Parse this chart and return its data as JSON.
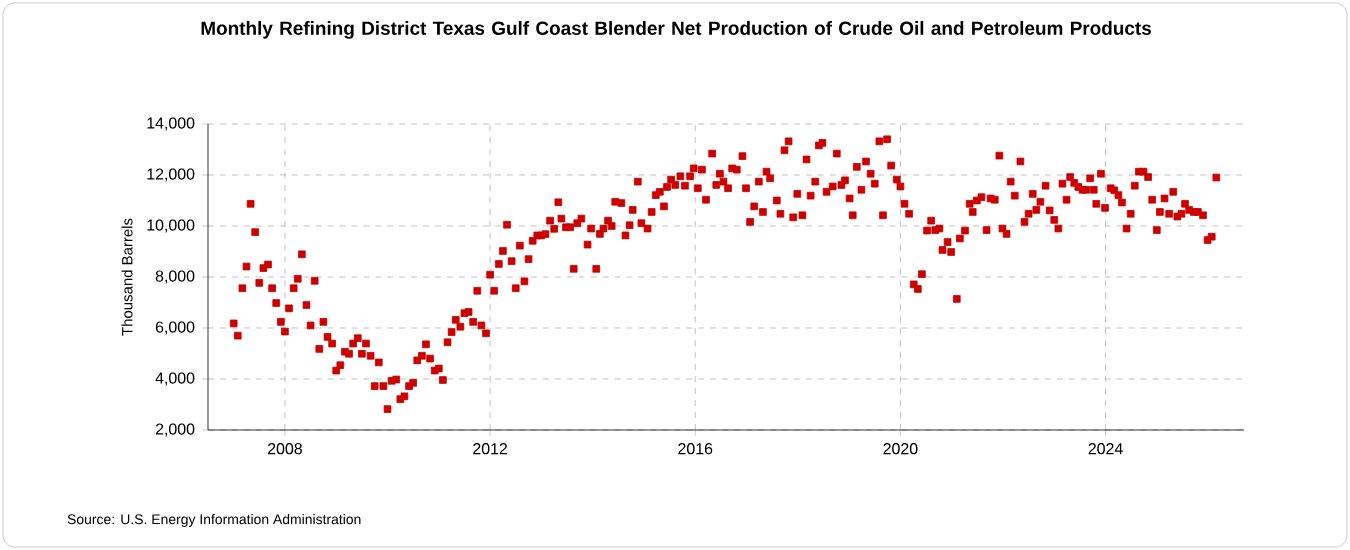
{
  "chart_data": {
    "type": "scatter",
    "title": "Monthly Refining District Texas Gulf Coast Blender Net Production of Crude Oil and Petroleum Products",
    "ylabel": "Thousand Barrels",
    "annotations": [
      "Source: U.S. Energy Information Administration"
    ],
    "xlim": [
      2006.5,
      2026.7
    ],
    "xticks": [
      2008,
      2012,
      2016,
      2020,
      2024
    ],
    "ylim": [
      2000,
      14000
    ],
    "yticks": [
      {
        "value": 2000,
        "label": "2,000"
      },
      {
        "value": 4000,
        "label": "4,000"
      },
      {
        "value": 6000,
        "label": "6,000"
      },
      {
        "value": 8000,
        "label": "8,000"
      },
      {
        "value": 10000,
        "label": "10,000"
      },
      {
        "value": 12000,
        "label": "12,000"
      },
      {
        "value": 14000,
        "label": "14,000"
      }
    ],
    "grid": true,
    "marker": "square",
    "series": [
      {
        "color": "#cc0000",
        "x": [
          2007.0,
          2007.08,
          2007.17,
          2007.25,
          2007.33,
          2007.42,
          2007.5,
          2007.58,
          2007.67,
          2007.75,
          2007.83,
          2007.92,
          2008.0,
          2008.08,
          2008.17,
          2008.25,
          2008.33,
          2008.42,
          2008.5,
          2008.58,
          2008.67,
          2008.75,
          2008.83,
          2008.92,
          2009.0,
          2009.08,
          2009.17,
          2009.25,
          2009.33,
          2009.42,
          2009.5,
          2009.58,
          2009.67,
          2009.75,
          2009.83,
          2009.92,
          2010.0,
          2010.08,
          2010.17,
          2010.25,
          2010.33,
          2010.42,
          2010.5,
          2010.58,
          2010.67,
          2010.75,
          2010.83,
          2010.92,
          2011.0,
          2011.08,
          2011.17,
          2011.25,
          2011.33,
          2011.42,
          2011.5,
          2011.58,
          2011.67,
          2011.75,
          2011.83,
          2011.92,
          2012.0,
          2012.08,
          2012.17,
          2012.25,
          2012.33,
          2012.42,
          2012.5,
          2012.58,
          2012.67,
          2012.75,
          2012.83,
          2012.92,
          2013.0,
          2013.08,
          2013.17,
          2013.25,
          2013.33,
          2013.39,
          2013.48,
          2013.56,
          2013.63,
          2013.7,
          2013.78,
          2013.9,
          2013.97,
          2014.07,
          2014.14,
          2014.21,
          2014.3,
          2014.37,
          2014.44,
          2014.56,
          2014.64,
          2014.72,
          2014.78,
          2014.88,
          2014.95,
          2015.07,
          2015.15,
          2015.23,
          2015.31,
          2015.39,
          2015.45,
          2015.53,
          2015.61,
          2015.71,
          2015.8,
          2015.9,
          2015.97,
          2016.05,
          2016.13,
          2016.21,
          2016.33,
          2016.41,
          2016.48,
          2016.55,
          2016.64,
          2016.72,
          2016.81,
          2016.92,
          2016.99,
          2017.07,
          2017.15,
          2017.24,
          2017.32,
          2017.39,
          2017.46,
          2017.59,
          2017.66,
          2017.74,
          2017.82,
          2017.91,
          2017.99,
          2018.09,
          2018.17,
          2018.25,
          2018.34,
          2018.41,
          2018.48,
          2018.56,
          2018.68,
          2018.76,
          2018.85,
          2018.92,
          2019.01,
          2019.07,
          2019.15,
          2019.24,
          2019.33,
          2019.42,
          2019.5,
          2019.59,
          2019.66,
          2019.74,
          2019.82,
          2019.93,
          2020.0,
          2020.08,
          2020.17,
          2020.26,
          2020.34,
          2020.42,
          2020.52,
          2020.6,
          2020.68,
          2020.76,
          2020.82,
          2020.92,
          2020.99,
          2021.1,
          2021.16,
          2021.26,
          2021.35,
          2021.41,
          2021.49,
          2021.58,
          2021.68,
          2021.76,
          2021.84,
          2021.93,
          2021.99,
          2022.07,
          2022.15,
          2022.23,
          2022.34,
          2022.42,
          2022.5,
          2022.58,
          2022.65,
          2022.73,
          2022.83,
          2022.91,
          2023.0,
          2023.08,
          2023.16,
          2023.24,
          2023.31,
          2023.39,
          2023.47,
          2023.55,
          2023.62,
          2023.7,
          2023.77,
          2023.82,
          2023.91,
          2023.99,
          2024.1,
          2024.17,
          2024.25,
          2024.32,
          2024.41,
          2024.49,
          2024.57,
          2024.65,
          2024.74,
          2024.83,
          2024.91,
          2025.0,
          2025.06,
          2025.15,
          2025.24,
          2025.32,
          2025.4,
          2025.48,
          2025.55,
          2025.63,
          2025.72,
          2025.8,
          2025.9,
          2025.99,
          2026.07,
          2026.16
        ],
        "values": [
          6180,
          5700,
          7560,
          8410,
          10870,
          9760,
          7770,
          8350,
          8490,
          7560,
          6980,
          6240,
          5860,
          6770,
          7560,
          7930,
          8890,
          6900,
          6100,
          7850,
          5180,
          6240,
          5650,
          5390,
          4330,
          4540,
          5070,
          4990,
          5390,
          5600,
          4990,
          5390,
          4910,
          3720,
          4650,
          3720,
          2820,
          3930,
          3980,
          3210,
          3320,
          3720,
          3850,
          4730,
          4910,
          5360,
          4800,
          4330,
          4410,
          3960,
          5440,
          5840,
          6320,
          6050,
          6580,
          6630,
          6240,
          7460,
          6100,
          5790,
          8090,
          7460,
          8510,
          9020,
          10050,
          8620,
          7560,
          9230,
          7830,
          8700,
          9420,
          9630,
          9630,
          9680,
          10210,
          9890,
          10930,
          10290,
          9950,
          9950,
          8320,
          10110,
          10290,
          9270,
          9900,
          8320,
          9690,
          9900,
          10210,
          10000,
          10950,
          10900,
          9630,
          10030,
          10630,
          11740,
          10110,
          9900,
          10550,
          11210,
          11340,
          10770,
          11530,
          11820,
          11610,
          11950,
          11580,
          11950,
          12260,
          11480,
          12210,
          11030,
          12840,
          11610,
          12050,
          11740,
          11480,
          12260,
          12210,
          12740,
          11480,
          10160,
          10770,
          11740,
          10550,
          12130,
          11870,
          11000,
          10480,
          12970,
          13320,
          10340,
          11260,
          10420,
          12610,
          11190,
          11740,
          13160,
          13260,
          11340,
          11550,
          12840,
          11610,
          11790,
          11080,
          10420,
          12320,
          11420,
          12530,
          12050,
          11660,
          13320,
          10420,
          13400,
          12370,
          11820,
          11550,
          10870,
          10480,
          7710,
          7530,
          8110,
          9820,
          10210,
          9840,
          9900,
          9060,
          9370,
          8980,
          7140,
          9510,
          9820,
          10870,
          10550,
          11000,
          11130,
          9840,
          11080,
          11030,
          12760,
          9900,
          9690,
          11740,
          11190,
          12530,
          10160,
          10480,
          11260,
          10630,
          10950,
          11580,
          10610,
          10240,
          9900,
          11660,
          11030,
          11920,
          11690,
          11530,
          11420,
          11420,
          11870,
          11420,
          10870,
          12050,
          10710,
          11480,
          11400,
          11210,
          10920,
          9900,
          10480,
          11580,
          12130,
          12130,
          11920,
          11030,
          9840,
          10550,
          11080,
          10480,
          11340,
          10370,
          10480,
          10870,
          10630,
          10550,
          10550,
          10420,
          9450,
          9580,
          11900
        ]
      }
    ]
  }
}
